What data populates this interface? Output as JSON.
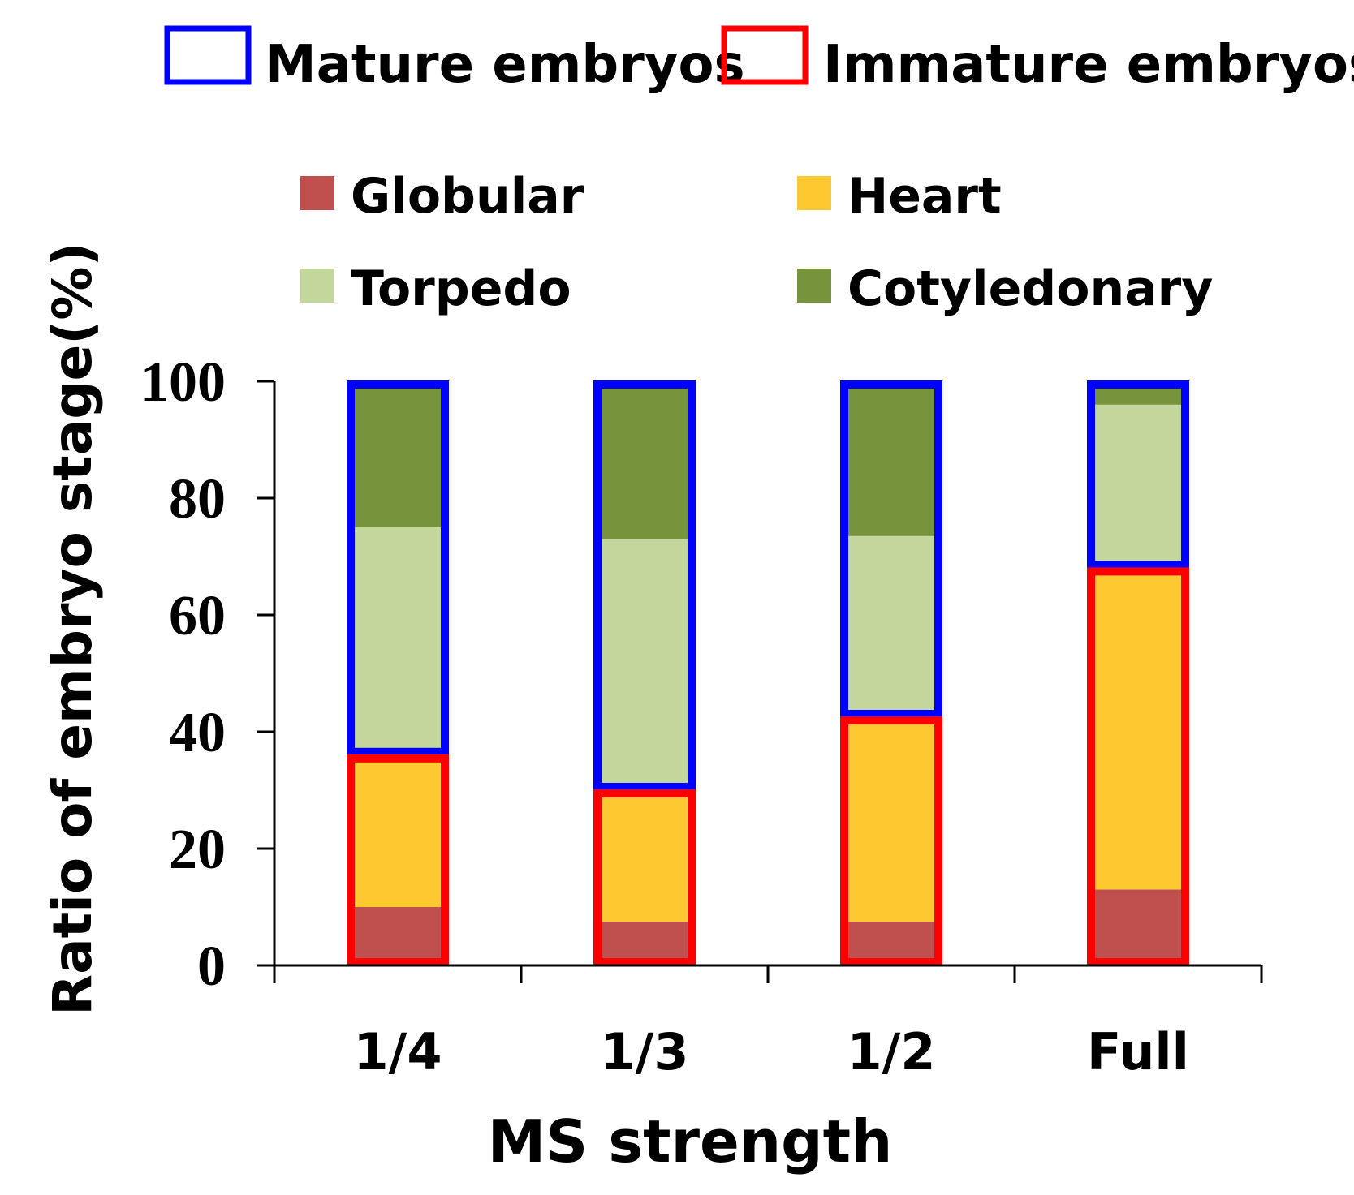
{
  "chart_data": {
    "type": "bar",
    "stacked": true,
    "title": "",
    "xlabel": "MS strength",
    "ylabel": "Ratio of embryo stage(%)",
    "ylim": [
      0,
      100
    ],
    "yticks": [
      "0",
      "20",
      "40",
      "60",
      "80",
      "100"
    ],
    "categories": [
      "1/4",
      "1/3",
      "1/2",
      "Full"
    ],
    "series": [
      {
        "name": "Globular",
        "color": "#c0504d",
        "values": [
          10,
          7.5,
          7.5,
          13
        ]
      },
      {
        "name": "Heart",
        "color": "#fdc830",
        "values": [
          26,
          22.5,
          35,
          55
        ]
      },
      {
        "name": "Torpedo",
        "color": "#c3d69b",
        "values": [
          39,
          43,
          31,
          28
        ]
      },
      {
        "name": "Cotyledonary",
        "color": "#77933c",
        "values": [
          25,
          27,
          26.5,
          4
        ]
      }
    ],
    "groups": [
      {
        "name": "Mature embryos",
        "color": "#0000ff",
        "stacks": [
          "Torpedo",
          "Cotyledonary"
        ]
      },
      {
        "name": "Immature embryos",
        "color": "#ff0000",
        "stacks": [
          "Globular",
          "Heart"
        ]
      }
    ],
    "legend_position": "top"
  }
}
